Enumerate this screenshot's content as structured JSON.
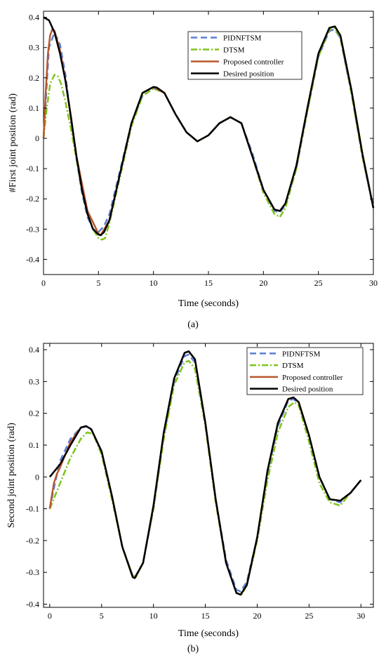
{
  "colors": {
    "pidnftsm": "#5b7fd6",
    "dtsm": "#7fc41c",
    "proposed": "#b8562c",
    "desired": "#000000"
  },
  "chart_data": [
    {
      "type": "line",
      "caption": "(a)",
      "xlabel": "Time (seconds)",
      "ylabel": "#First joint position (rad)",
      "xlim": [
        0,
        30
      ],
      "ylim": [
        -0.45,
        0.42
      ],
      "xticks": [
        0,
        5,
        10,
        15,
        20,
        25,
        30
      ],
      "yticks": [
        0.4,
        0.3,
        0.2,
        0.1,
        0,
        -0.1,
        -0.2,
        -0.3,
        -0.4
      ],
      "grid": false,
      "legend_position": "top-right",
      "series": [
        {
          "name": "PIDNFTSM",
          "style": "dashed",
          "color_key": "pidnftsm",
          "x": [
            0,
            0.5,
            1.0,
            1.5,
            2.0,
            2.5,
            3.0,
            3.5,
            4.0,
            4.5,
            5.0,
            5.5,
            6.0,
            7.0,
            8.0,
            9.0,
            10.0,
            11.0,
            12.0,
            13.0,
            14.0,
            15.0,
            16.0,
            17.0,
            18.0,
            19.0,
            20.0,
            21.0,
            21.5,
            22.0,
            23.0,
            24.0,
            25.0,
            26.0,
            26.5,
            27.0,
            28.0,
            29.0,
            30.0
          ],
          "y": [
            0.0,
            0.3,
            0.35,
            0.31,
            0.21,
            0.06,
            -0.07,
            -0.18,
            -0.26,
            -0.3,
            -0.31,
            -0.29,
            -0.25,
            -0.1,
            0.05,
            0.14,
            0.165,
            0.15,
            0.08,
            0.02,
            -0.01,
            0.01,
            0.05,
            0.07,
            0.05,
            -0.05,
            -0.17,
            -0.24,
            -0.245,
            -0.22,
            -0.1,
            0.09,
            0.27,
            0.355,
            0.36,
            0.33,
            0.15,
            -0.06,
            -0.23
          ]
        },
        {
          "name": "DTSM",
          "style": "dashdot",
          "color_key": "dtsm",
          "x": [
            0,
            0.3,
            0.6,
            1.0,
            1.3,
            1.6,
            2.0,
            2.5,
            3.0,
            3.5,
            4.0,
            4.5,
            5.0,
            5.3,
            5.6,
            6.0,
            7.0,
            8.0,
            9.0,
            10.0,
            11.0,
            12.0,
            13.0,
            14.0,
            15.0,
            16.0,
            17.0,
            18.0,
            19.0,
            20.0,
            21.0,
            21.5,
            22.0,
            23.0,
            24.0,
            25.0,
            26.0,
            26.5,
            27.0,
            28.0,
            29.0,
            30.0
          ],
          "y": [
            0.0,
            0.1,
            0.18,
            0.21,
            0.205,
            0.18,
            0.12,
            0.03,
            -0.07,
            -0.17,
            -0.25,
            -0.3,
            -0.33,
            -0.335,
            -0.33,
            -0.28,
            -0.12,
            0.04,
            0.14,
            0.165,
            0.15,
            0.08,
            0.02,
            -0.01,
            0.01,
            0.05,
            0.07,
            0.05,
            -0.06,
            -0.18,
            -0.25,
            -0.26,
            -0.23,
            -0.1,
            0.09,
            0.27,
            0.36,
            0.365,
            0.33,
            0.15,
            -0.06,
            -0.23
          ]
        },
        {
          "name": "Proposed controller",
          "style": "solid",
          "color_key": "proposed",
          "x": [
            0,
            0.2,
            0.4,
            0.6,
            0.8,
            1.0,
            1.5,
            2.0,
            3.0,
            4.0,
            5.0,
            5.2,
            6.0,
            7.0,
            8.0,
            9.0,
            10.0,
            11.0,
            12.0,
            13.0,
            14.0,
            15.0,
            16.0,
            17.0,
            18.0,
            19.0,
            20.0,
            21.0,
            21.5,
            22.0,
            23.0,
            24.0,
            25.0,
            26.0,
            26.5,
            27.0,
            28.0,
            29.0,
            30.0
          ],
          "y": [
            0.0,
            0.15,
            0.28,
            0.34,
            0.36,
            0.355,
            0.29,
            0.19,
            -0.06,
            -0.24,
            -0.315,
            -0.32,
            -0.27,
            -0.11,
            0.05,
            0.15,
            0.17,
            0.15,
            0.08,
            0.02,
            -0.01,
            0.01,
            0.05,
            0.07,
            0.05,
            -0.06,
            -0.17,
            -0.235,
            -0.24,
            -0.215,
            -0.09,
            0.1,
            0.28,
            0.365,
            0.37,
            0.34,
            0.16,
            -0.05,
            -0.23
          ]
        },
        {
          "name": "Desired position",
          "style": "solid",
          "color_key": "desired",
          "x": [
            0,
            0.5,
            1.0,
            1.5,
            2.0,
            2.5,
            3.0,
            3.5,
            4.0,
            4.5,
            5.0,
            5.2,
            5.5,
            6.0,
            7.0,
            8.0,
            9.0,
            10.0,
            10.3,
            11.0,
            12.0,
            13.0,
            14.0,
            15.0,
            16.0,
            17.0,
            18.0,
            19.0,
            20.0,
            21.0,
            21.5,
            22.0,
            23.0,
            24.0,
            25.0,
            26.0,
            26.5,
            27.0,
            28.0,
            29.0,
            30.0
          ],
          "y": [
            0.4,
            0.39,
            0.35,
            0.28,
            0.19,
            0.07,
            -0.06,
            -0.17,
            -0.25,
            -0.3,
            -0.318,
            -0.32,
            -0.31,
            -0.27,
            -0.11,
            0.05,
            0.15,
            0.17,
            0.168,
            0.15,
            0.08,
            0.02,
            -0.01,
            0.01,
            0.05,
            0.07,
            0.05,
            -0.06,
            -0.17,
            -0.235,
            -0.24,
            -0.215,
            -0.09,
            0.1,
            0.28,
            0.365,
            0.37,
            0.34,
            0.16,
            -0.05,
            -0.23
          ]
        }
      ]
    },
    {
      "type": "line",
      "caption": "(b)",
      "xlabel": "Time (seconds)",
      "ylabel": "Second joint position (rad)",
      "xlim": [
        -0.6,
        31.2
      ],
      "ylim": [
        -0.41,
        0.42
      ],
      "xticks": [
        0,
        5,
        10,
        15,
        20,
        25,
        30
      ],
      "yticks": [
        0.4,
        0.3,
        0.2,
        0.1,
        0,
        -0.1,
        -0.2,
        -0.3,
        -0.4
      ],
      "grid": false,
      "legend_position": "top-right",
      "series": [
        {
          "name": "PIDNFTSM",
          "style": "dashed",
          "color_key": "pidnftsm",
          "x": [
            0,
            0.5,
            1.0,
            2.0,
            3.0,
            3.5,
            4.0,
            5.0,
            6.0,
            7.0,
            8.0,
            8.2,
            9.0,
            10.0,
            11.0,
            12.0,
            13.0,
            13.4,
            14.0,
            15.0,
            16.0,
            17.0,
            18.0,
            18.4,
            19.0,
            20.0,
            21.0,
            22.0,
            23.0,
            23.5,
            24.0,
            25.0,
            26.0,
            27.0,
            28.0,
            29.0,
            30.0
          ],
          "y": [
            -0.1,
            -0.02,
            0.05,
            0.12,
            0.155,
            0.158,
            0.15,
            0.08,
            -0.06,
            -0.22,
            -0.31,
            -0.315,
            -0.27,
            -0.1,
            0.13,
            0.3,
            0.38,
            0.385,
            0.36,
            0.17,
            -0.07,
            -0.26,
            -0.355,
            -0.36,
            -0.33,
            -0.19,
            0.01,
            0.16,
            0.24,
            0.245,
            0.23,
            0.13,
            0.0,
            -0.07,
            -0.08,
            -0.05,
            -0.01
          ]
        },
        {
          "name": "DTSM",
          "style": "dashdot",
          "color_key": "dtsm",
          "x": [
            0,
            0.5,
            1.0,
            2.0,
            3.0,
            3.6,
            4.2,
            5.0,
            6.0,
            7.0,
            8.0,
            8.3,
            9.0,
            10.0,
            11.0,
            12.0,
            13.0,
            13.4,
            14.0,
            15.0,
            16.0,
            17.0,
            18.0,
            18.5,
            19.0,
            20.0,
            21.0,
            22.0,
            23.0,
            23.6,
            24.0,
            25.0,
            26.0,
            27.0,
            28.0,
            29.0,
            30.0
          ],
          "y": [
            -0.1,
            -0.06,
            -0.02,
            0.06,
            0.12,
            0.14,
            0.135,
            0.07,
            -0.07,
            -0.22,
            -0.31,
            -0.315,
            -0.27,
            -0.1,
            0.12,
            0.29,
            0.36,
            0.365,
            0.34,
            0.16,
            -0.08,
            -0.27,
            -0.365,
            -0.37,
            -0.34,
            -0.2,
            -0.01,
            0.14,
            0.22,
            0.235,
            0.225,
            0.11,
            -0.02,
            -0.08,
            -0.09,
            -0.05,
            -0.01
          ]
        },
        {
          "name": "Proposed controller",
          "style": "solid",
          "color_key": "proposed",
          "x": [
            0,
            0.2,
            0.4,
            0.7,
            1.0,
            1.5,
            2.0,
            3.0,
            3.5,
            4.0,
            5.0,
            6.0,
            7.0,
            8.0,
            8.2,
            9.0,
            10.0,
            11.0,
            12.0,
            13.0,
            13.4,
            14.0,
            15.0,
            16.0,
            17.0,
            18.0,
            18.4,
            19.0,
            20.0,
            21.0,
            22.0,
            23.0,
            23.5,
            24.0,
            25.0,
            26.0,
            27.0,
            28.0,
            29.0,
            30.0
          ],
          "y": [
            -0.1,
            -0.06,
            -0.02,
            0.01,
            0.03,
            0.07,
            0.11,
            0.155,
            0.16,
            0.15,
            0.08,
            -0.06,
            -0.22,
            -0.315,
            -0.318,
            -0.27,
            -0.09,
            0.14,
            0.31,
            0.39,
            0.395,
            0.37,
            0.17,
            -0.07,
            -0.27,
            -0.365,
            -0.37,
            -0.34,
            -0.19,
            0.02,
            0.17,
            0.245,
            0.25,
            0.235,
            0.13,
            0.0,
            -0.07,
            -0.075,
            -0.05,
            -0.01
          ]
        },
        {
          "name": "Desired position",
          "style": "solid",
          "color_key": "desired",
          "x": [
            0,
            0.5,
            1.0,
            1.5,
            2.0,
            3.0,
            3.5,
            4.0,
            5.0,
            6.0,
            7.0,
            8.0,
            8.2,
            9.0,
            10.0,
            11.0,
            12.0,
            13.0,
            13.4,
            14.0,
            15.0,
            16.0,
            17.0,
            18.0,
            18.4,
            19.0,
            20.0,
            21.0,
            22.0,
            23.0,
            23.5,
            24.0,
            25.0,
            26.0,
            27.0,
            28.0,
            29.0,
            30.0
          ],
          "y": [
            0.0,
            0.02,
            0.04,
            0.07,
            0.1,
            0.155,
            0.16,
            0.15,
            0.08,
            -0.06,
            -0.22,
            -0.315,
            -0.318,
            -0.27,
            -0.09,
            0.14,
            0.31,
            0.39,
            0.395,
            0.37,
            0.17,
            -0.07,
            -0.27,
            -0.365,
            -0.37,
            -0.34,
            -0.19,
            0.02,
            0.17,
            0.245,
            0.25,
            0.235,
            0.13,
            0.0,
            -0.07,
            -0.075,
            -0.05,
            -0.01
          ]
        }
      ]
    }
  ]
}
